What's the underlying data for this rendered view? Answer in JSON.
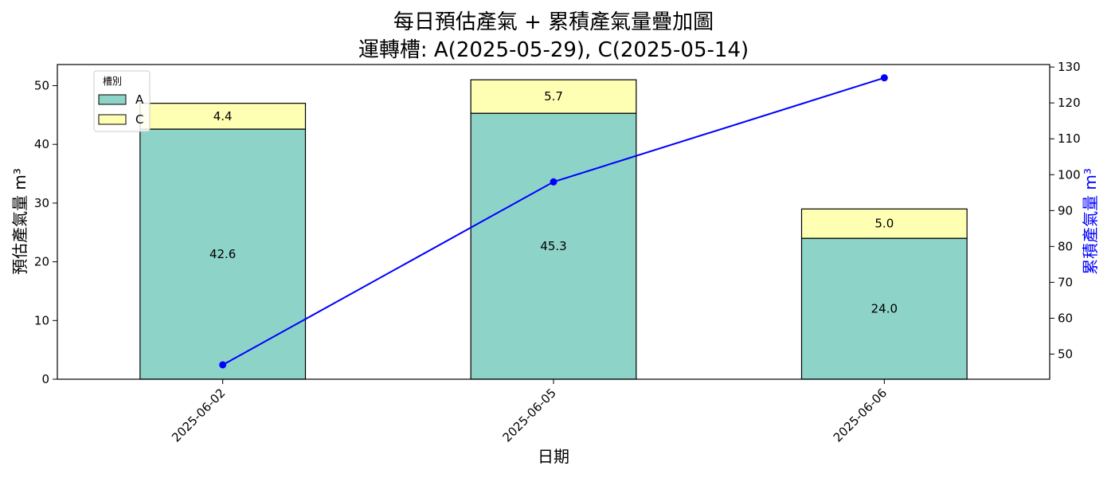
{
  "chart_data": {
    "type": "bar",
    "stacked": true,
    "title": [
      "每日預估產氣 + 累積產氣量疊加圖",
      "運轉槽: A(2025-05-29), C(2025-05-14)"
    ],
    "xlabel": "日期",
    "ylabel_left": "預估產氣量 m³",
    "ylabel_right": "累積產氣量 m³",
    "categories": [
      "2025-06-02",
      "2025-06-05",
      "2025-06-06"
    ],
    "series": [
      {
        "name": "A",
        "values": [
          42.6,
          45.3,
          24.0
        ],
        "color": "#8dd3c7"
      },
      {
        "name": "C",
        "values": [
          4.4,
          5.7,
          5.0
        ],
        "color": "#ffffb3"
      }
    ],
    "line_series": {
      "values": [
        47,
        98,
        127
      ],
      "color": "#0000ff",
      "axis": "right"
    },
    "ylim_left": [
      0,
      53.6
    ],
    "yticks_left": [
      0,
      10,
      20,
      30,
      40,
      50
    ],
    "ylim_right": [
      43,
      130.7
    ],
    "yticks_right": [
      50,
      60,
      70,
      80,
      90,
      100,
      110,
      120,
      130
    ],
    "legend": {
      "title": "槽別",
      "placement": "upper-left"
    },
    "grid": false
  }
}
